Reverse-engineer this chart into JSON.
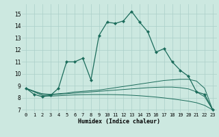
{
  "xlabel": "Humidex (Indice chaleur)",
  "x": [
    0,
    1,
    2,
    3,
    4,
    5,
    6,
    7,
    8,
    9,
    10,
    11,
    12,
    13,
    14,
    15,
    16,
    17,
    18,
    19,
    20,
    21,
    22,
    23
  ],
  "y_main": [
    8.8,
    8.3,
    8.1,
    8.2,
    8.8,
    11.0,
    11.0,
    11.3,
    9.5,
    13.2,
    14.3,
    14.2,
    14.4,
    15.2,
    14.3,
    13.5,
    11.8,
    12.1,
    11.0,
    10.3,
    9.8,
    8.5,
    8.3,
    7.0
  ],
  "y_trend1": [
    8.8,
    8.55,
    8.35,
    8.3,
    8.35,
    8.4,
    8.5,
    8.55,
    8.6,
    8.65,
    8.75,
    8.85,
    8.95,
    9.05,
    9.15,
    9.25,
    9.35,
    9.45,
    9.5,
    9.55,
    9.55,
    9.4,
    8.8,
    7.0
  ],
  "y_trend2": [
    8.8,
    8.55,
    8.3,
    8.25,
    8.3,
    8.35,
    8.4,
    8.45,
    8.5,
    8.55,
    8.6,
    8.65,
    8.7,
    8.75,
    8.8,
    8.85,
    8.88,
    8.9,
    8.9,
    8.85,
    8.75,
    8.5,
    8.1,
    7.0
  ],
  "y_trend3": [
    8.8,
    8.5,
    8.2,
    8.15,
    8.18,
    8.22,
    8.25,
    8.27,
    8.28,
    8.28,
    8.28,
    8.27,
    8.25,
    8.22,
    8.18,
    8.13,
    8.07,
    8.0,
    7.92,
    7.83,
    7.73,
    7.6,
    7.38,
    7.0
  ],
  "ylim": [
    6.8,
    15.8
  ],
  "yticks": [
    7,
    8,
    9,
    10,
    11,
    12,
    13,
    14,
    15
  ],
  "xlim": [
    -0.5,
    23.5
  ],
  "bg_color": "#cce8e0",
  "line_color": "#1a6b5a",
  "grid_color": "#aacfc8",
  "marker": "D",
  "markersize": 2.2,
  "lw_main": 0.9,
  "lw_trend": 0.7,
  "tick_fontsize": 5.0,
  "xlabel_fontsize": 6.0
}
